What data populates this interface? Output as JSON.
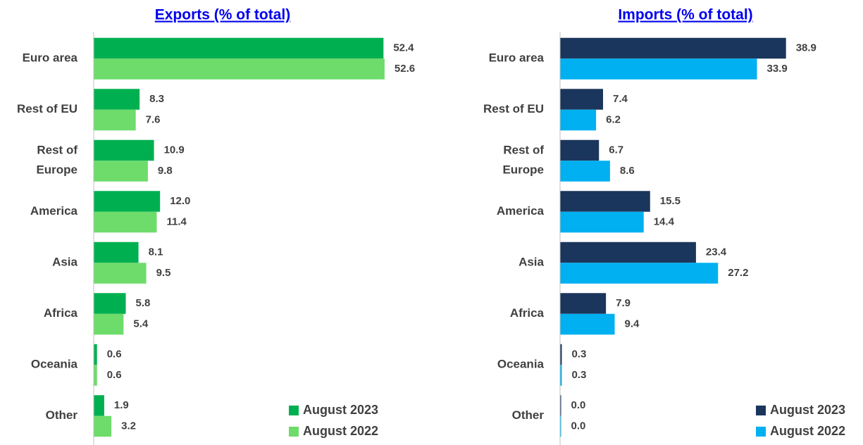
{
  "chart_data": [
    {
      "type": "barh",
      "title": "Exports (% of total)",
      "categories": [
        "Euro area",
        "Rest of EU",
        "Rest of Europe",
        "America",
        "Asia",
        "Africa",
        "Oceania",
        "Other"
      ],
      "series": [
        {
          "name": "August 2023",
          "color": "#00b050",
          "values": [
            52.4,
            8.3,
            10.9,
            12.0,
            8.1,
            5.8,
            0.6,
            1.9
          ],
          "value_labels": [
            "52.4",
            "8.3",
            "10.9",
            "12.0",
            "8.1",
            "5.8",
            "0.6",
            "1.9"
          ]
        },
        {
          "name": "August 2022",
          "color": "#6ddc6a",
          "values": [
            52.6,
            7.6,
            9.8,
            11.4,
            9.5,
            5.4,
            0.6,
            3.2
          ],
          "value_labels": [
            "52.6",
            "7.6",
            "9.8",
            "11.4",
            "9.5",
            "5.4",
            "0.6",
            "3.2"
          ]
        }
      ],
      "xlim": [
        0,
        60
      ],
      "legend": "lower right"
    },
    {
      "type": "barh",
      "title": "Imports (% of total)",
      "categories": [
        "Euro area",
        "Rest of EU",
        "Rest of Europe",
        "America",
        "Asia",
        "Africa",
        "Oceania",
        "Other"
      ],
      "series": [
        {
          "name": "August 2023",
          "color": "#1b365d",
          "values": [
            38.9,
            7.4,
            6.7,
            15.5,
            23.4,
            7.9,
            0.3,
            0.0
          ],
          "value_labels": [
            "38.9",
            "7.4",
            "6.7",
            "15.5",
            "23.4",
            "7.9",
            "0.3",
            "0.0"
          ]
        },
        {
          "name": "August 2022",
          "color": "#00b0f0",
          "values": [
            33.9,
            6.2,
            8.6,
            14.4,
            27.2,
            9.4,
            0.3,
            0.0
          ],
          "value_labels": [
            "33.9",
            "6.2",
            "8.6",
            "14.4",
            "27.2",
            "9.4",
            "0.3",
            "0.0"
          ]
        }
      ],
      "xlim": [
        0,
        45
      ],
      "legend": "lower right"
    }
  ]
}
